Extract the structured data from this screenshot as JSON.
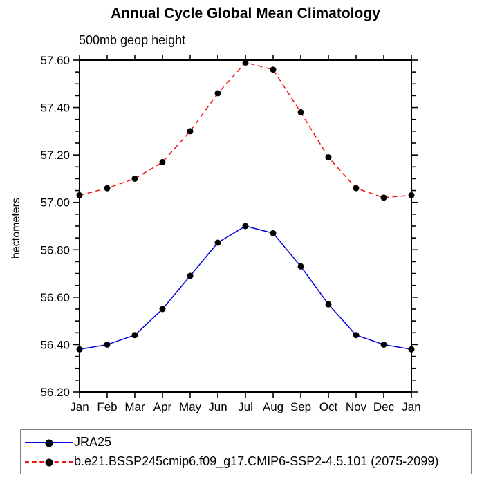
{
  "title": "Annual Cycle Global Mean Climatology",
  "subtitle": "500mb geop height",
  "chart_data": {
    "type": "line",
    "title": "Annual Cycle Global Mean Climatology",
    "subtitle": "500mb geop height",
    "xlabel": "",
    "ylabel": "hectometers",
    "categories": [
      "Jan",
      "Feb",
      "Mar",
      "Apr",
      "May",
      "Jun",
      "Jul",
      "Aug",
      "Sep",
      "Oct",
      "Nov",
      "Dec",
      "Jan"
    ],
    "ylim": [
      56.2,
      57.6
    ],
    "ytick_major": 0.2,
    "ytick_minor": 0.05,
    "ytick_labels": [
      "56.20",
      "56.40",
      "56.60",
      "56.80",
      "57.00",
      "57.20",
      "57.40",
      "57.60"
    ],
    "grid": false,
    "legend_position": "bottom-left-box",
    "series": [
      {
        "name": "JRA25",
        "color": "#0000dd",
        "style": "solid",
        "marker": "black-dot",
        "values": [
          56.38,
          56.4,
          56.44,
          56.55,
          56.69,
          56.83,
          56.9,
          56.87,
          56.73,
          56.57,
          56.44,
          56.4,
          56.38
        ]
      },
      {
        "name": "b.e21.BSSP245cmip6.f09_g17.CMIP6-SSP2-4.5.101 (2075-2099)",
        "color": "#ee1111",
        "style": "dashed",
        "marker": "black-dot",
        "values": [
          57.03,
          57.06,
          57.1,
          57.17,
          57.3,
          57.46,
          57.59,
          57.56,
          57.38,
          57.19,
          57.06,
          57.02,
          57.03
        ]
      }
    ]
  },
  "colors": {
    "axis": "#000000",
    "marker": "#000000",
    "legend_border": "#7f7f7f",
    "background": "#ffffff"
  }
}
